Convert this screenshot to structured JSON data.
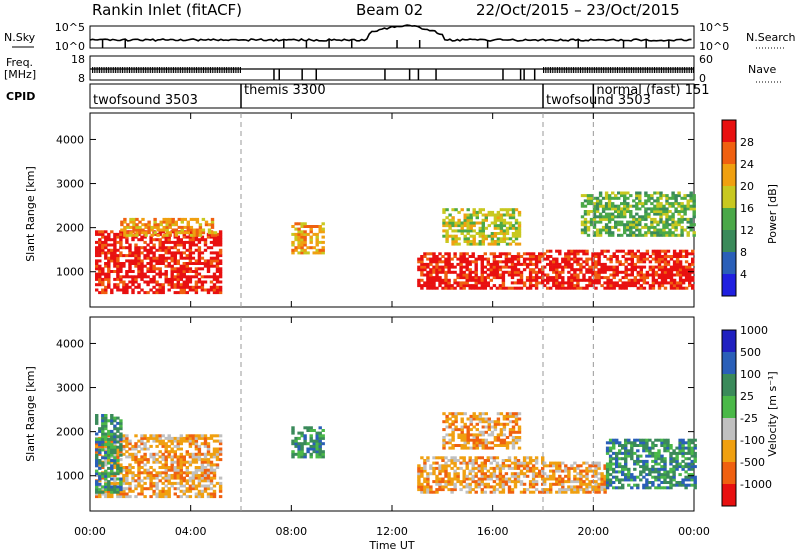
{
  "header": {
    "station": "Rankin Inlet (fitACF)",
    "beam": "Beam 02",
    "date_range": "22/Oct/2015 – 23/Oct/2015"
  },
  "strips": {
    "nsky_label": "N.Sky",
    "nsearch_label": "N.Search",
    "nsky_ticks": [
      "10^5",
      "10^0"
    ],
    "nsearch_ticks": [
      "10^5",
      "10^0"
    ],
    "freq_label": "Freq.",
    "freq_unit": "[MHz]",
    "freq_ticks": [
      "18",
      "8"
    ],
    "nave_label": "Nave",
    "nave_ticks": [
      "60",
      "0"
    ],
    "cpid_label": "CPID",
    "cpid_segments": [
      {
        "name": "twofsound 3503",
        "start": 0,
        "end": 6
      },
      {
        "name": "themis 3300",
        "start": 6,
        "end": 18
      },
      {
        "name": "twofsound 3503",
        "start": 18,
        "end": 20
      },
      {
        "name": "normal (fast) 151",
        "start": 20,
        "end": 24
      }
    ]
  },
  "chart_data": [
    {
      "type": "heatmap",
      "panel": "power",
      "ylabel": "Slant Range [km]",
      "y_ticks": [
        1000,
        2000,
        3000,
        4000
      ],
      "ylim": [
        200,
        4600
      ],
      "xlim": [
        0,
        24
      ],
      "colorbar_label": "Power [dB]",
      "colorbar_ticks": [
        "4",
        "8",
        "12",
        "16",
        "20",
        "24",
        "28"
      ],
      "colors": [
        "#2020e0",
        "#2a5fb8",
        "#3a8a5a",
        "#4aa848",
        "#c8c820",
        "#f0a010",
        "#f06010",
        "#e81010"
      ],
      "regions": [
        {
          "x": [
            0.2,
            5.2
          ],
          "y": [
            500,
            1900
          ],
          "level": 7
        },
        {
          "x": [
            1.2,
            5.0
          ],
          "y": [
            1800,
            2200
          ],
          "level": 5
        },
        {
          "x": [
            8.0,
            9.2
          ],
          "y": [
            1400,
            2100
          ],
          "level": 5
        },
        {
          "x": [
            13.0,
            18.0
          ],
          "y": [
            600,
            1400
          ],
          "level": 7
        },
        {
          "x": [
            18.0,
            24.0
          ],
          "y": [
            600,
            1500
          ],
          "level": 7
        },
        {
          "x": [
            19.5,
            24.0
          ],
          "y": [
            1800,
            2800
          ],
          "level": 3
        },
        {
          "x": [
            14.0,
            17.0
          ],
          "y": [
            1600,
            2400
          ],
          "level": 4
        }
      ]
    },
    {
      "type": "heatmap",
      "panel": "velocity",
      "xlabel": "Time UT",
      "ylabel": "Slant Range [km]",
      "x_ticks": [
        "00:00",
        "04:00",
        "08:00",
        "12:00",
        "16:00",
        "20:00",
        "00:00"
      ],
      "y_ticks": [
        1000,
        2000,
        3000,
        4000
      ],
      "ylim": [
        200,
        4600
      ],
      "xlim": [
        0,
        24
      ],
      "colorbar_label": "Velocity [m s⁻¹]",
      "colorbar_ticks": [
        "-1000",
        "-500",
        "-100",
        "-25",
        "25",
        "100",
        "500",
        "1000"
      ],
      "colors": [
        "#e81010",
        "#f06010",
        "#f0a010",
        "#c0c0c0",
        "#4ab848",
        "#3a8a5a",
        "#2a5fb8",
        "#2020c0"
      ],
      "regions": [
        {
          "x": [
            0.2,
            5.2
          ],
          "y": [
            500,
            1900
          ],
          "level": 2
        },
        {
          "x": [
            0.2,
            1.2
          ],
          "y": [
            600,
            2400
          ],
          "level": 5
        },
        {
          "x": [
            8.0,
            9.2
          ],
          "y": [
            1400,
            2100
          ],
          "level": 5
        },
        {
          "x": [
            13.0,
            18.0
          ],
          "y": [
            600,
            1400
          ],
          "level": 2
        },
        {
          "x": [
            18.0,
            20.5
          ],
          "y": [
            600,
            1300
          ],
          "level": 2
        },
        {
          "x": [
            20.5,
            24.0
          ],
          "y": [
            700,
            1800
          ],
          "level": 5
        },
        {
          "x": [
            14.0,
            17.0
          ],
          "y": [
            1600,
            2400
          ],
          "level": 2
        }
      ]
    }
  ],
  "mode_change_hours": [
    6,
    18,
    20
  ]
}
